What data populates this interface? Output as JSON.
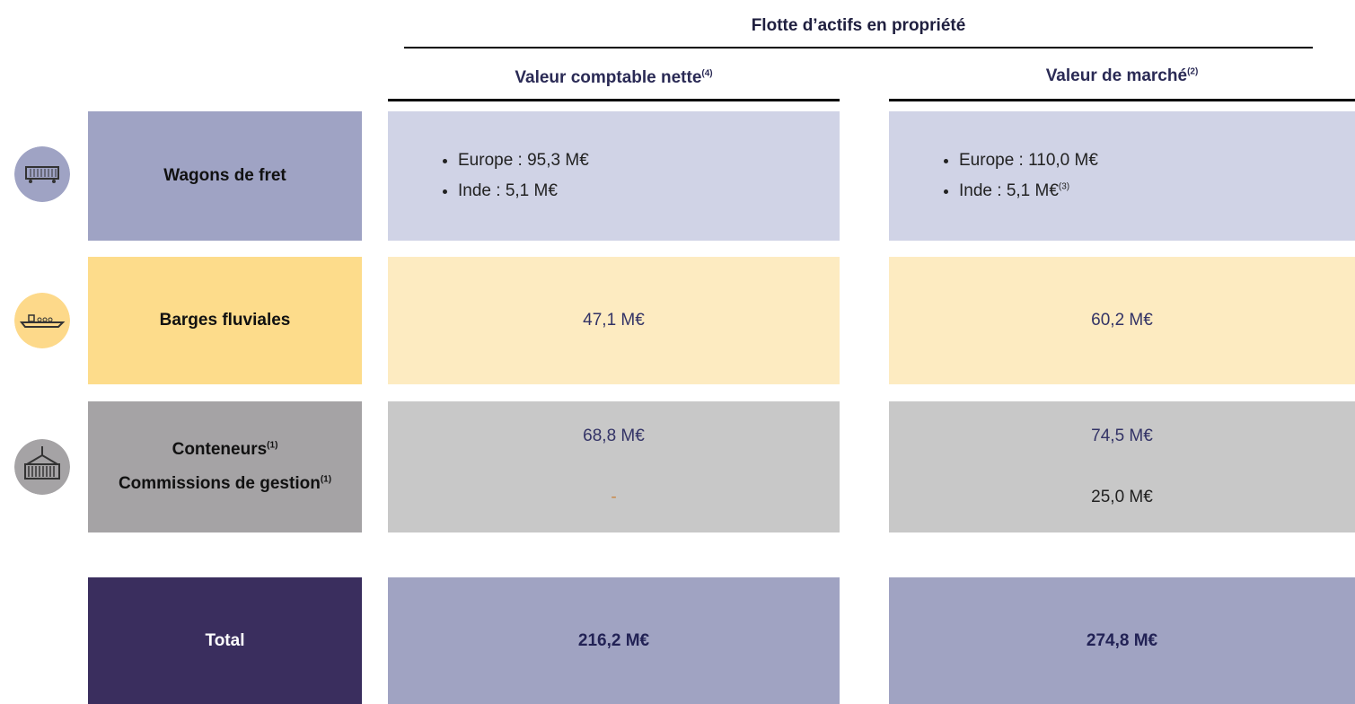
{
  "header": {
    "title": "Flotte d’actifs en propriété"
  },
  "columns": [
    {
      "label": "Valeur comptable nette",
      "note": "(4)"
    },
    {
      "label": "Valeur de marché",
      "note": "(2)"
    }
  ],
  "rows": [
    {
      "labels": [
        {
          "text": "Wagons de fret"
        }
      ],
      "book": [
        {
          "text": "Europe : 95,3 M€"
        },
        {
          "text": "Inde : 5,1 M€"
        }
      ],
      "market": [
        {
          "text": "Europe : 110,0 M€"
        },
        {
          "text": "Inde : 5,1 M€",
          "note": "(3)"
        }
      ]
    },
    {
      "labels": [
        {
          "text": "Barges fluviales"
        }
      ],
      "book": [
        {
          "text": "47,1 M€"
        }
      ],
      "market": [
        {
          "text": "60,2 M€"
        }
      ]
    },
    {
      "labels": [
        {
          "text": "Conteneurs",
          "note": "(1)"
        },
        {
          "text": "Commissions de gestion",
          "note": "(1)"
        }
      ],
      "book": [
        {
          "text": "68,8 M€"
        },
        {
          "text": "-"
        }
      ],
      "market": [
        {
          "text": "74,5 M€"
        },
        {
          "text": "25,0 M€"
        }
      ]
    }
  ],
  "total": {
    "label": "Total",
    "book": "216,2 M€",
    "market": "274,8 M€"
  }
}
